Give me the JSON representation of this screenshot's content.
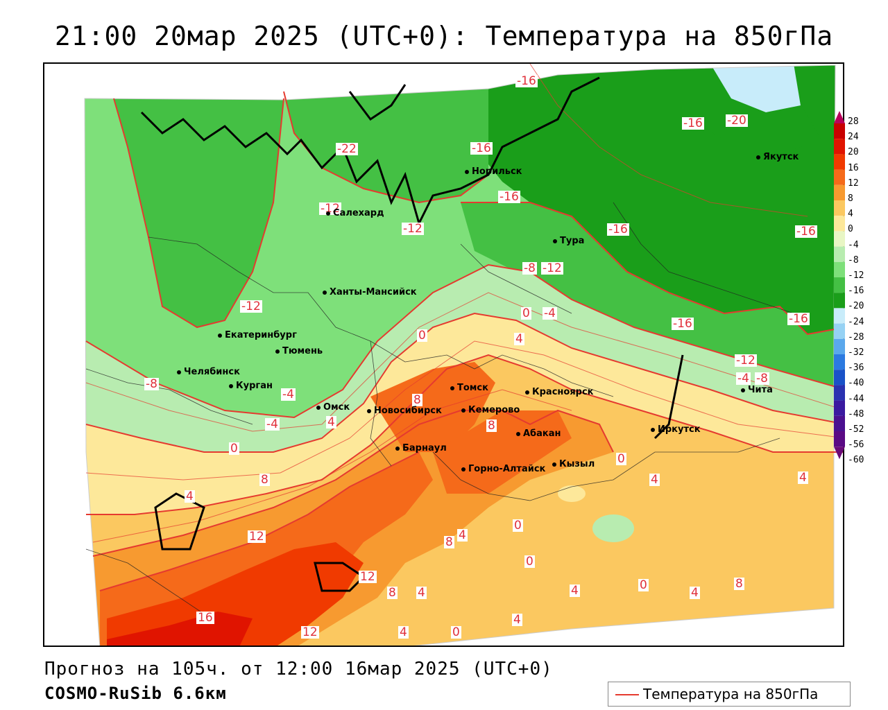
{
  "title": "21:00 20мар 2025 (UTC+0): Температура на 850гПа",
  "footer": {
    "forecast": "Прогноз на 105ч. от 12:00 16мар 2025 (UTC+0)",
    "model": "COSMO-RuSib 6.6км"
  },
  "legend": {
    "label": "Температура на 850гПа",
    "line_color": "#e53a2f"
  },
  "colorbar": {
    "ticks": [
      "28",
      "24",
      "20",
      "16",
      "12",
      "8",
      "4",
      "0",
      "-4",
      "-8",
      "-12",
      "-16",
      "-20",
      "-24",
      "-28",
      "-32",
      "-36",
      "-40",
      "-44",
      "-48",
      "-52",
      "-56",
      "-60"
    ],
    "colors": [
      "#b8005a",
      "#c80000",
      "#e01400",
      "#f03a00",
      "#f56a1a",
      "#f79a30",
      "#fbc860",
      "#fde89a",
      "#e8f6c4",
      "#b8ecb0",
      "#7ee07a",
      "#44c044",
      "#1a9e1a",
      "#c8ecfa",
      "#96d2f4",
      "#5aa8ec",
      "#2c7ae0",
      "#1a52c8",
      "#2a32b0",
      "#3a1aa0",
      "#4a1090",
      "#5a0a84",
      "#6a0a78"
    ]
  },
  "cities": [
    {
      "name": "Норильск"
    },
    {
      "name": "Якутск"
    },
    {
      "name": "Салехард"
    },
    {
      "name": "Тура"
    },
    {
      "name": "Ханты-Мансийск"
    },
    {
      "name": "Екатеринбург"
    },
    {
      "name": "Тюмень"
    },
    {
      "name": "Челябинск"
    },
    {
      "name": "Курган"
    },
    {
      "name": "Омск"
    },
    {
      "name": "Томск"
    },
    {
      "name": "Красноярск"
    },
    {
      "name": "Новосибирск"
    },
    {
      "name": "Кемерово"
    },
    {
      "name": "Абакан"
    },
    {
      "name": "Барнаул"
    },
    {
      "name": "Горно-Алтайск"
    },
    {
      "name": "Кызыл"
    },
    {
      "name": "Иркутск"
    },
    {
      "name": "Чита"
    }
  ],
  "contour_labels": [
    "-16",
    "-20",
    "-16",
    "-22",
    "-16",
    "-16",
    "-12",
    "-16",
    "-16",
    "-12",
    "-8",
    "-12",
    "-12",
    "-4",
    "0",
    "-16",
    "-16",
    "-12",
    "-4",
    "-8",
    "-8",
    "-4",
    "0",
    "4",
    "8",
    "8",
    "-4",
    "0",
    "4",
    "8",
    "4",
    "12",
    "12",
    "16",
    "8",
    "12",
    "8",
    "4",
    "4",
    "0",
    "0",
    "4",
    "4",
    "4",
    "0",
    "4",
    "0",
    "8",
    "4",
    "0",
    "4"
  ]
}
